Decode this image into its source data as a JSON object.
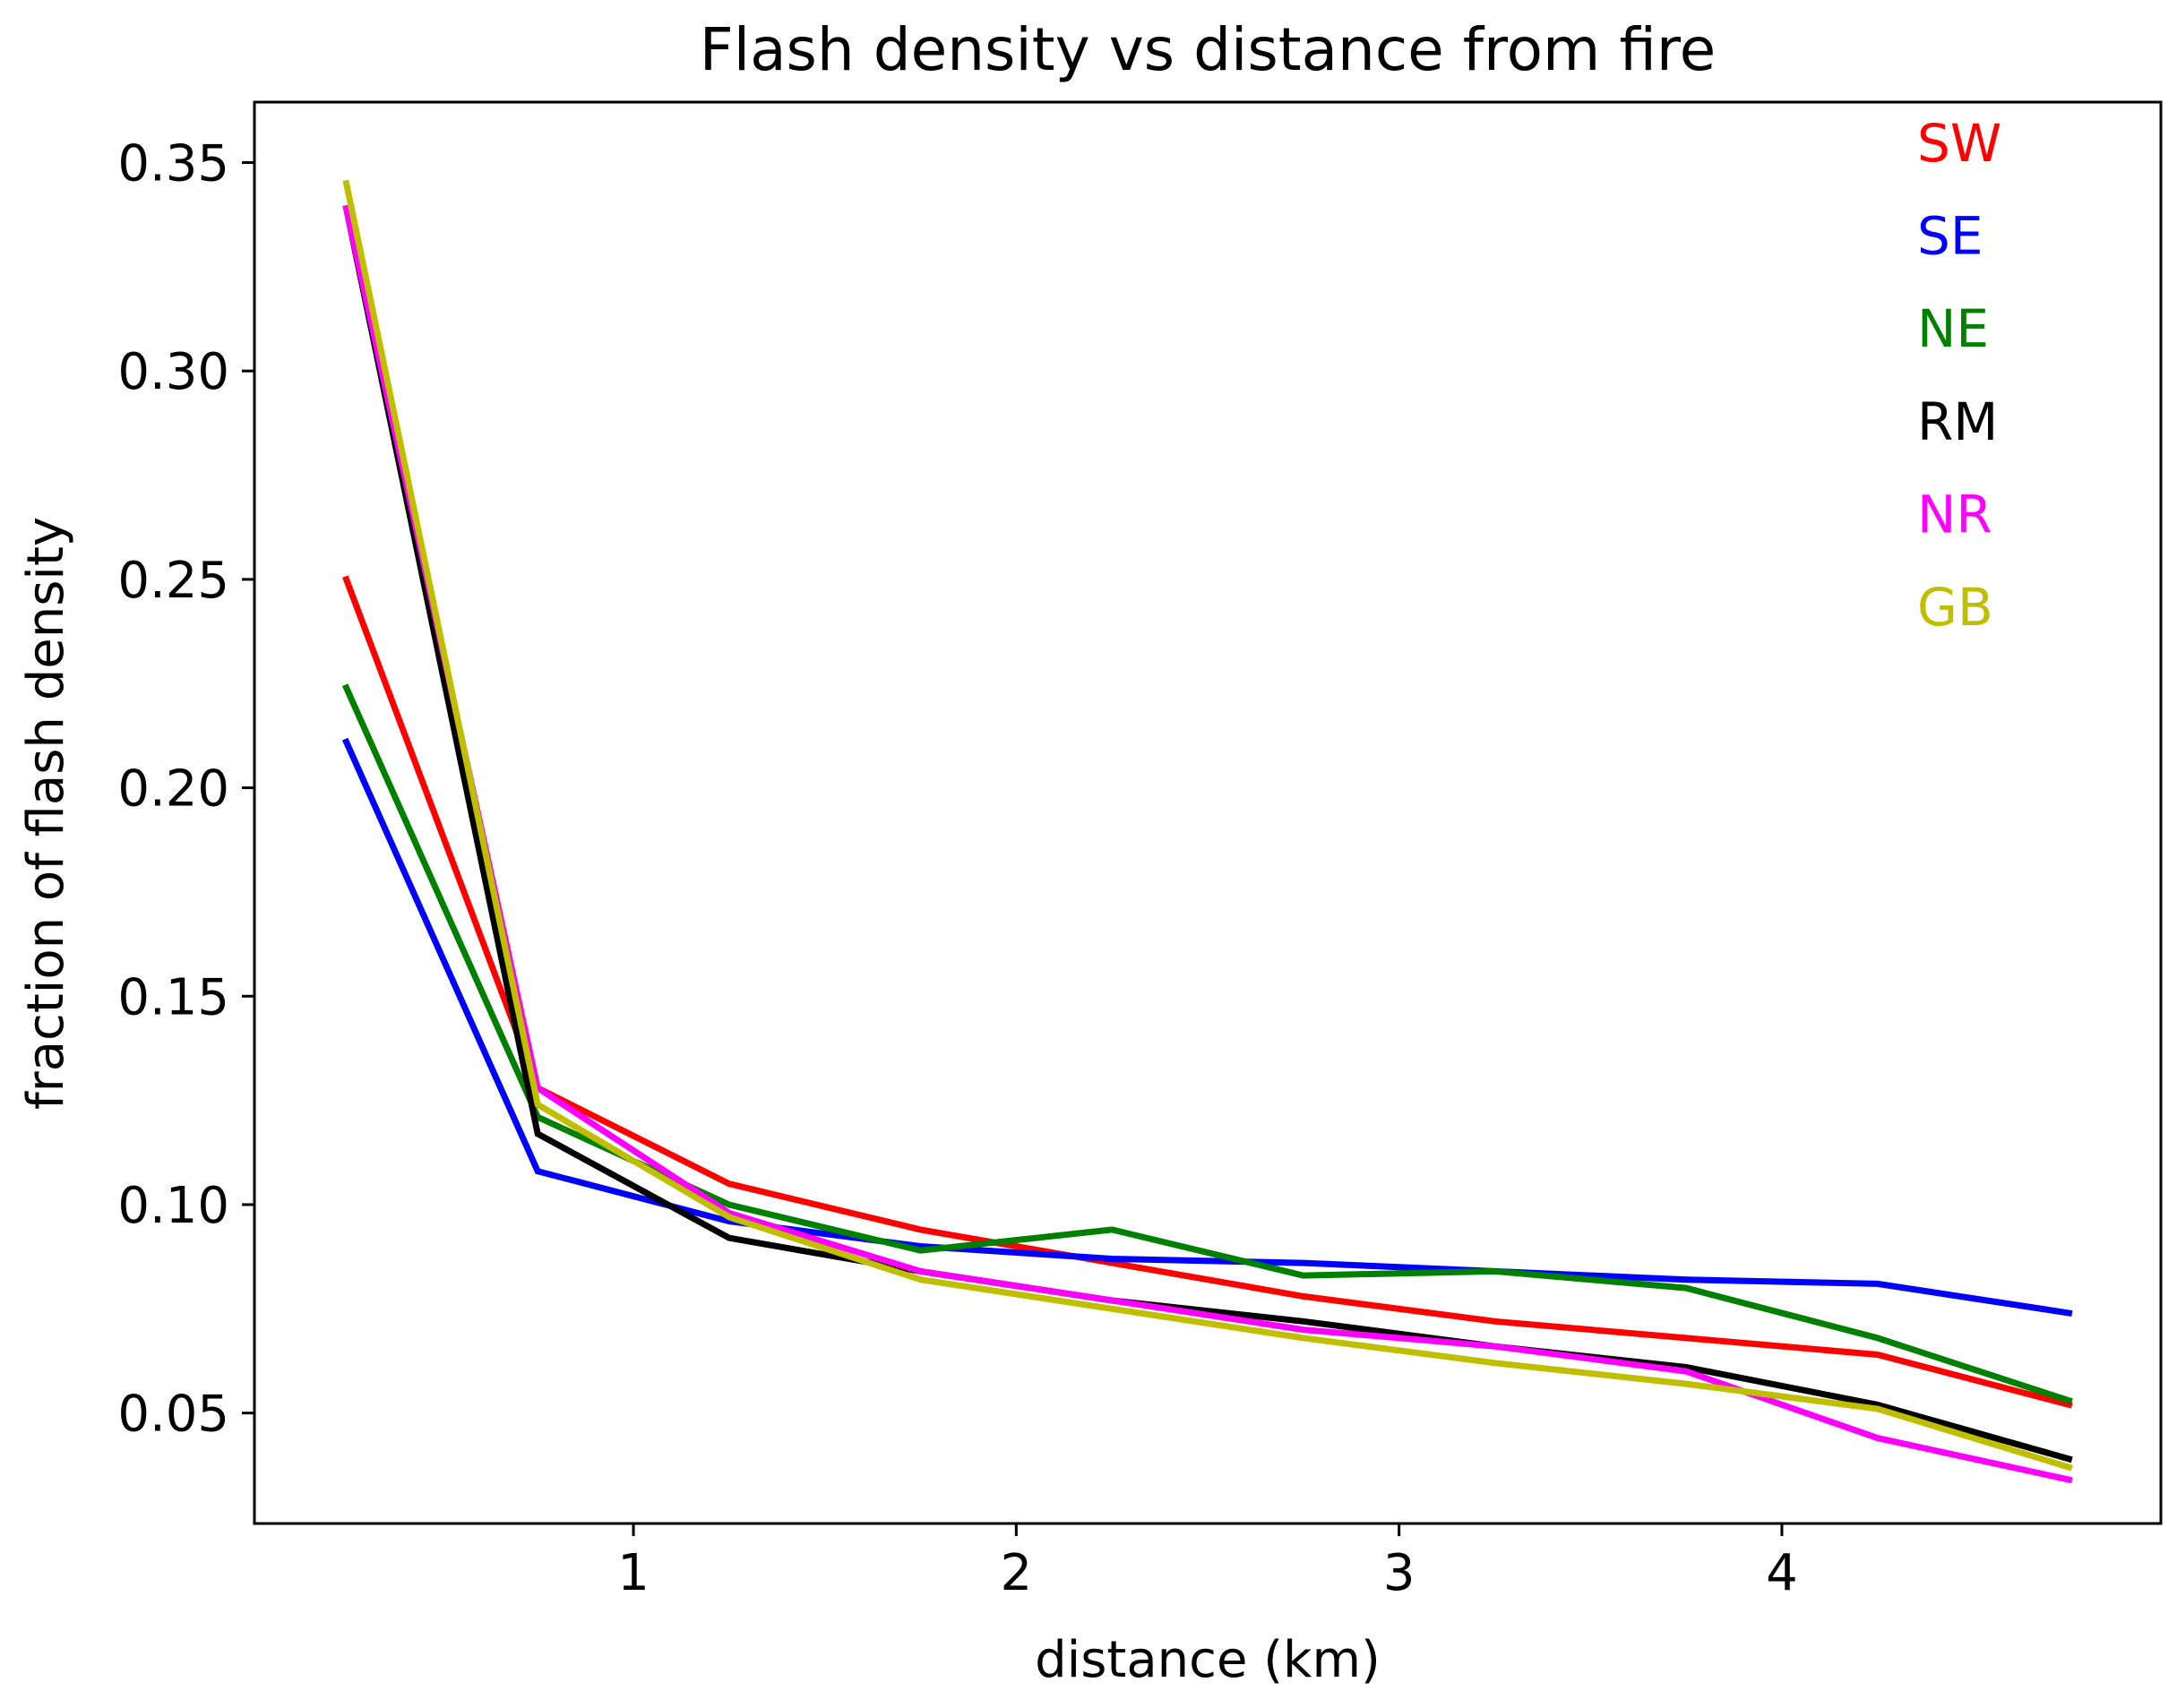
{
  "chart_data": {
    "type": "line",
    "title": "Flash density vs distance from fire",
    "xlabel": "distance (km)",
    "ylabel": "fraction of flash density",
    "xlim": [
      0.01,
      4.99
    ],
    "ylim": [
      0.0235,
      0.3645
    ],
    "xticks": [
      1,
      2,
      3,
      4
    ],
    "xtick_labels": [
      "1",
      "2",
      "3",
      "4"
    ],
    "yticks": [
      0.05,
      0.1,
      0.15,
      0.2,
      0.25,
      0.3,
      0.35
    ],
    "ytick_labels": [
      "0.05",
      "0.10",
      "0.15",
      "0.20",
      "0.25",
      "0.30",
      "0.35"
    ],
    "grid": false,
    "legend_position": "top-right",
    "x": [
      0.25,
      0.75,
      1.25,
      1.75,
      2.25,
      2.75,
      3.25,
      3.75,
      4.25,
      4.75
    ],
    "series": [
      {
        "name": "SW",
        "color": "#ff0000",
        "values": [
          0.25,
          0.128,
          0.105,
          0.094,
          0.086,
          0.078,
          0.072,
          0.068,
          0.064,
          0.052
        ]
      },
      {
        "name": "SE",
        "color": "#0000ff",
        "values": [
          0.211,
          0.108,
          0.096,
          0.09,
          0.087,
          0.086,
          0.084,
          0.082,
          0.081,
          0.074
        ]
      },
      {
        "name": "NE",
        "color": "#008000",
        "values": [
          0.224,
          0.121,
          0.1,
          0.089,
          0.094,
          0.083,
          0.084,
          0.08,
          0.068,
          0.053
        ]
      },
      {
        "name": "RM",
        "color": "#000000",
        "values": [
          0.339,
          0.117,
          0.092,
          0.084,
          0.077,
          0.072,
          0.066,
          0.061,
          0.052,
          0.039
        ]
      },
      {
        "name": "NR",
        "color": "#ff00ff",
        "values": [
          0.339,
          0.128,
          0.098,
          0.084,
          0.077,
          0.07,
          0.066,
          0.06,
          0.044,
          0.034
        ]
      },
      {
        "name": "GB",
        "color": "#bfbf00",
        "values": [
          0.345,
          0.124,
          0.097,
          0.082,
          0.075,
          0.068,
          0.062,
          0.057,
          0.051,
          0.037
        ]
      }
    ]
  }
}
